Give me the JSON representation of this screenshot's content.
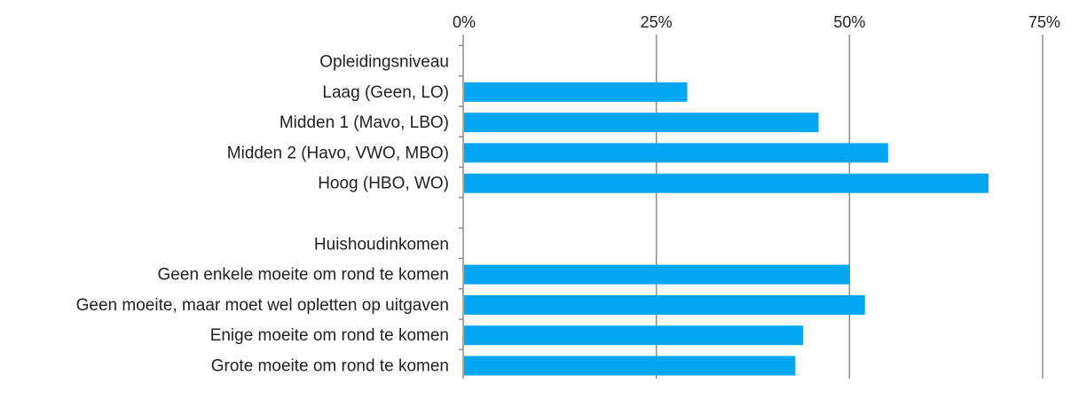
{
  "chart_data": {
    "type": "bar",
    "orientation": "horizontal",
    "categories": [
      "Opleidingsniveau",
      "Laag (Geen, LO)",
      "Midden 1 (Mavo, LBO)",
      "Midden 2 (Havo, VWO, MBO)",
      "Hoog (HBO, WO)",
      "",
      "Huishoudinkomen",
      "Geen enkele moeite om rond te komen",
      "Geen moeite, maar moet wel opletten op uitgaven",
      "Enige moeite om rond te komen",
      "Grote moeite om rond te komen"
    ],
    "values": [
      null,
      29,
      46,
      55,
      68,
      null,
      null,
      50,
      52,
      44,
      43
    ],
    "xlim": [
      0,
      75
    ],
    "x_ticks": [
      0,
      25,
      50,
      75
    ],
    "x_tick_labels": [
      "0%",
      "25%",
      "50%",
      "75%"
    ],
    "x_axis_position": "top",
    "grid": true,
    "colors": {
      "bar": "#03a6f0",
      "grid": "#8c8c8c",
      "text": "#222222"
    }
  }
}
